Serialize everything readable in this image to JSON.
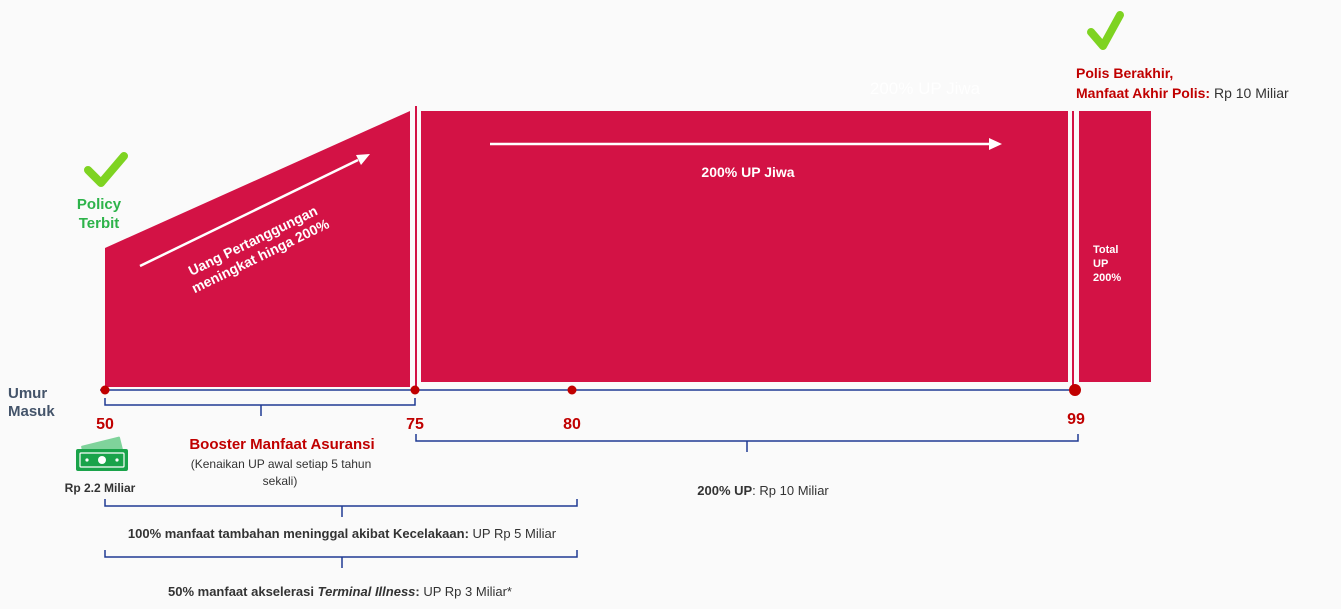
{
  "colors": {
    "brand_red": "#d31245",
    "timeline_red": "#c00000",
    "check_green": "#7ed321",
    "text_green": "#2db34a",
    "bracket_blue": "#1f3a93",
    "text_dark": "#333333",
    "money_green": "#1aa34a"
  },
  "icons": {
    "start_check": "check-icon",
    "end_check": "check-icon",
    "money": "money-bill-icon"
  },
  "labels": {
    "policy_line1": "Policy",
    "policy_line2": "Terbit",
    "diagonal_line1": "Uang Pertanggungan",
    "diagonal_line2": "meningkat hinga 200%",
    "faint_title": "200% UP Jiwa",
    "main_block": "200% UP Jiwa",
    "total_line1": "Total",
    "total_line2": "UP",
    "total_line3": "200%",
    "end_red_line1": "Polis Berakhir,",
    "end_red_line2_bold": "Manfaat Akhir Polis:",
    "end_value": " Rp 10 Miliar"
  },
  "timeline": {
    "entry_label_line1": "Umur",
    "entry_label_line2": "Masuk",
    "ages": [
      "50",
      "75",
      "80",
      "99"
    ]
  },
  "annotations": {
    "booster_title": "Booster Manfaat Asuransi",
    "booster_sub_line1": "(Kenaikan UP awal setiap 5 tahun",
    "booster_sub_line2": "sekali)",
    "money_label": "Rp 2.2 Miliar",
    "up200_bold": "200% UP",
    "up200_value": ": Rp 10 Miliar",
    "accident_bold": "100% manfaat tambahan meninggal akibat Kecelakaan:",
    "accident_value": " UP Rp 5 Miliar",
    "terminal_bold": "50% manfaat akselerasi ",
    "terminal_italic": "Terminal Illness",
    "terminal_bold2": ":",
    "terminal_value": " UP Rp 3 Miliar*"
  }
}
